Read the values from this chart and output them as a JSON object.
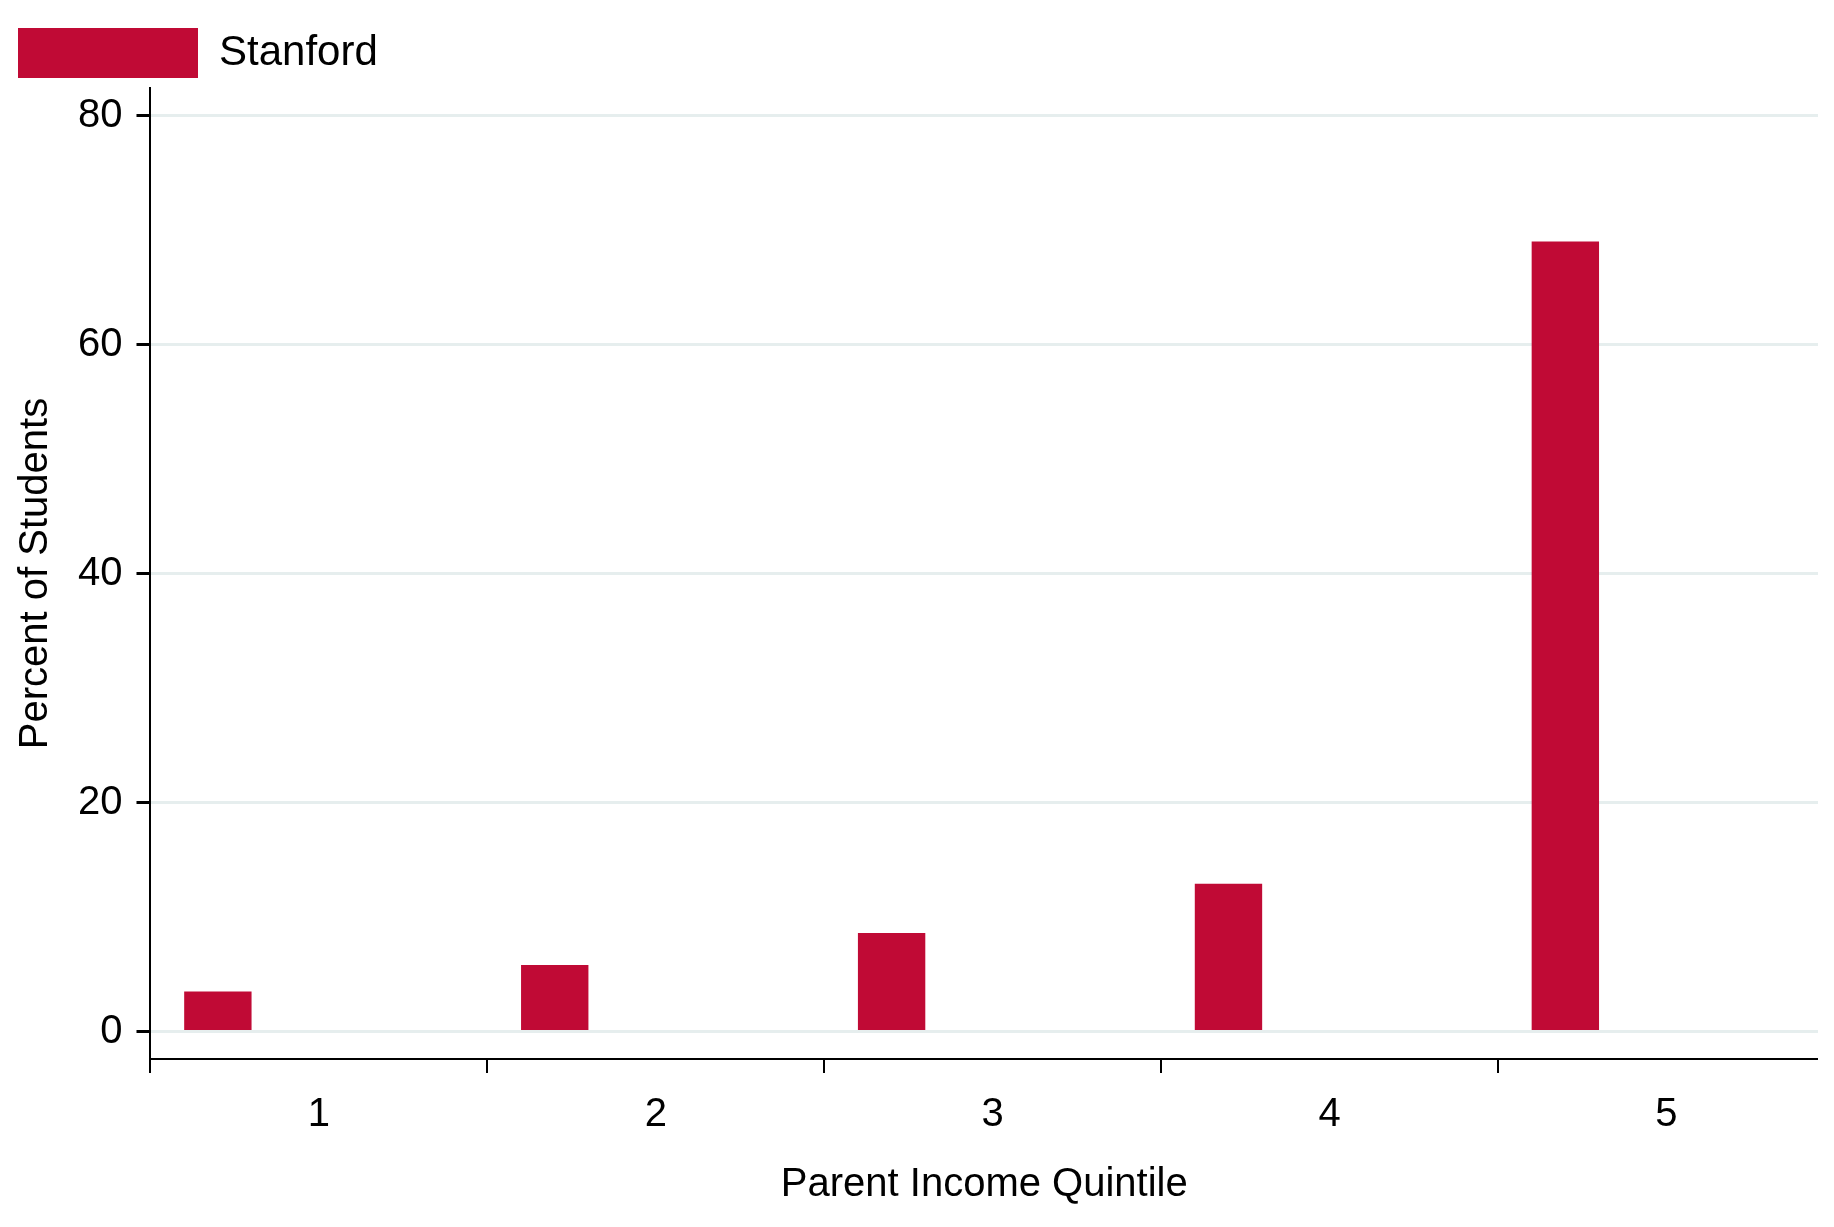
{
  "chart_data": {
    "type": "bar",
    "xlabel": "Parent Income Quintile",
    "ylabel": "Percent of Students",
    "x": [
      0.7,
      1.7,
      2.7,
      3.7,
      4.7
    ],
    "series": [
      {
        "name": "Stanford",
        "color": "#c00a35",
        "values": [
          3.5,
          5.8,
          8.6,
          12.9,
          69.0
        ]
      }
    ],
    "xlim": [
      0.5,
      5.45
    ],
    "xticks": [
      1,
      2,
      3,
      4,
      5
    ],
    "ylim": [
      -2.4,
      82.4
    ],
    "yticks": [
      0,
      20,
      40,
      60,
      80
    ],
    "grid": "y",
    "legend": "top left"
  }
}
